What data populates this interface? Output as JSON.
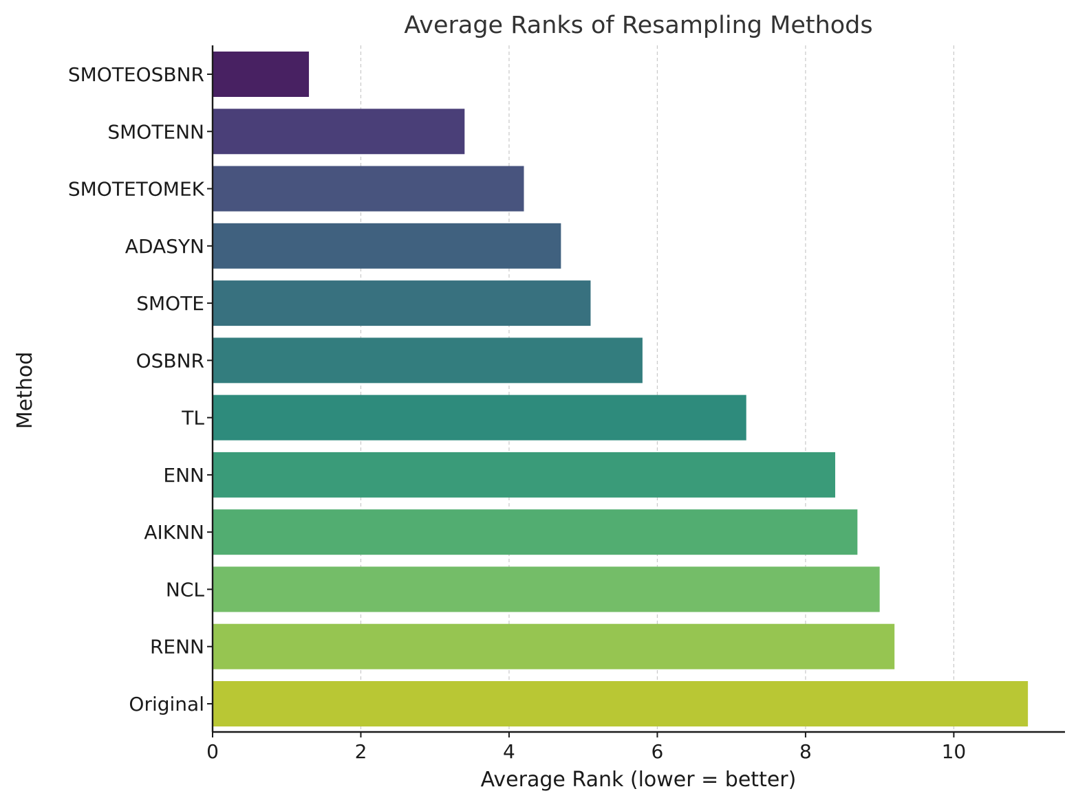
{
  "chart_data": {
    "type": "bar",
    "orientation": "horizontal",
    "title": "Average Ranks of Resampling Methods",
    "xlabel": "Average Rank (lower = better)",
    "ylabel": "Method",
    "xlim": [
      0,
      11.5
    ],
    "xticks": [
      0,
      2,
      4,
      6,
      8,
      10
    ],
    "grid": "x-dashed",
    "categories": [
      "SMOTEOSBNR",
      "SMOTENN",
      "SMOTETOMEK",
      "ADASYN",
      "SMOTE",
      "OSBNR",
      "TL",
      "ENN",
      "AIKNN",
      "NCL",
      "RENN",
      "Original"
    ],
    "values": [
      1.3,
      3.4,
      4.2,
      4.7,
      5.1,
      5.8,
      7.2,
      8.4,
      8.7,
      9.0,
      9.2,
      11.0
    ],
    "colors": [
      "#482162",
      "#4a3f78",
      "#48547e",
      "#40617f",
      "#38717f",
      "#337d7e",
      "#2e8b7c",
      "#3a9b79",
      "#52ad71",
      "#74bd68",
      "#96c551",
      "#b9c734"
    ]
  }
}
